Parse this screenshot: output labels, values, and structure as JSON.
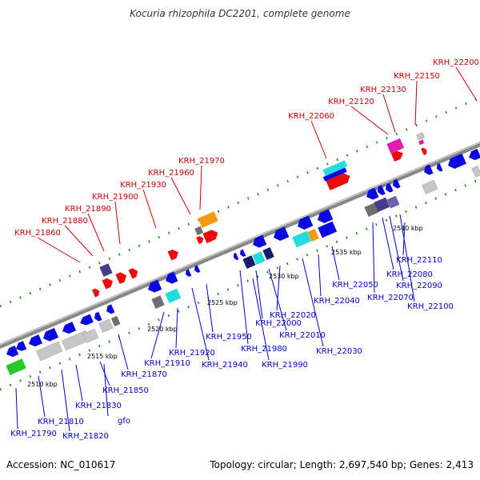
{
  "title": "Kocuria rhizophila DC2201, complete genome",
  "accession": "Accession: NC_010617",
  "summary": "Topology: circular; Length: 2,697,540 bp; Genes: 2,413",
  "colors": {
    "forward_label": "#cc0000",
    "reverse_label": "#0000cc",
    "backbone": "#999999",
    "tick": "#118811"
  },
  "kbp_marks": [
    "2510 kbp",
    "2515 kbp",
    "2520 kbp",
    "2525 kbp",
    "2530 kbp",
    "2535 kbp",
    "2540 kbp"
  ],
  "top_labels": [
    "KRH_21860",
    "KRH_21880",
    "KRH_21890",
    "KRH_21900",
    "KRH_21930",
    "KRH_21960",
    "KRH_21970",
    "KRH_22060",
    "KRH_22120",
    "KRH_22130",
    "KRH_22150",
    "KRH_22200"
  ],
  "bottom_labels": [
    "KRH_21790",
    "KRH_21810",
    "KRH_21820",
    "KRH_21830",
    "gfo",
    "KRH_21850",
    "KRH_21870",
    "KRH_21910",
    "KRH_21920",
    "KRH_21940",
    "KRH_21950",
    "KRH_21980",
    "KRH_21990",
    "KRH_22000",
    "KRH_22010",
    "KRH_22020",
    "KRH_22030",
    "KRH_22040",
    "KRH_22050",
    "KRH_22070",
    "KRH_22080",
    "KRH_22090",
    "KRH_22100",
    "KRH_22110"
  ]
}
